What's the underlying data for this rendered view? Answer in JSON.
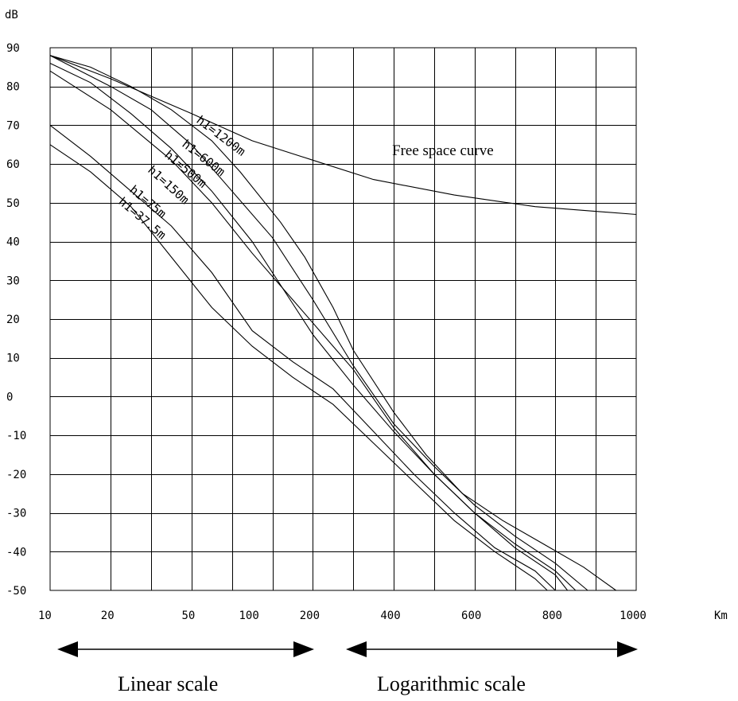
{
  "chart_data": {
    "type": "line",
    "ylabel": "dB",
    "x_unit": "Km",
    "ylim": [
      -50,
      90
    ],
    "y_ticks": [
      "90",
      "80",
      "70",
      "60",
      "50",
      "40",
      "30",
      "20",
      "10",
      "0",
      "-10",
      "-20",
      "-30",
      "-40",
      "-50"
    ],
    "x_tick_labels": [
      {
        "label": "10",
        "col": 0
      },
      {
        "label": "20",
        "col": 1.5
      },
      {
        "label": "50",
        "col": 3.5
      },
      {
        "label": "100",
        "col": 5
      },
      {
        "label": "200",
        "col": 6.5
      },
      {
        "label": "400",
        "col": 8.5
      },
      {
        "label": "600",
        "col": 10.5
      },
      {
        "label": "800",
        "col": 12.5
      },
      {
        "label": "1000",
        "col": 14.5
      }
    ],
    "grid": true,
    "series": [
      {
        "name": "Free space curve",
        "points": [
          [
            0,
            88
          ],
          [
            1.5,
            82
          ],
          [
            3.5,
            73
          ],
          [
            5,
            66
          ],
          [
            6.5,
            61
          ],
          [
            8,
            56
          ],
          [
            10,
            52
          ],
          [
            12,
            49
          ],
          [
            14.5,
            47
          ]
        ]
      },
      {
        "name": "h1=1200m",
        "points": [
          [
            0,
            88
          ],
          [
            1,
            85
          ],
          [
            2,
            80
          ],
          [
            3,
            74
          ],
          [
            4,
            66
          ],
          [
            4.7,
            58
          ],
          [
            5.7,
            45
          ],
          [
            6.3,
            36
          ],
          [
            7,
            23
          ],
          [
            7.5,
            12
          ],
          [
            8.5,
            -4
          ],
          [
            9.3,
            -15
          ],
          [
            10.2,
            -25
          ],
          [
            11.2,
            -32
          ],
          [
            12.2,
            -38
          ],
          [
            13.2,
            -44
          ],
          [
            14,
            -50
          ]
        ]
      },
      {
        "name": "h1=600m",
        "points": [
          [
            0,
            88
          ],
          [
            1.5,
            80
          ],
          [
            2.5,
            74
          ],
          [
            3.5,
            65
          ],
          [
            4.5,
            53
          ],
          [
            5.5,
            41
          ],
          [
            6.5,
            25
          ],
          [
            7.5,
            8
          ],
          [
            8.5,
            -7
          ],
          [
            9.5,
            -18
          ],
          [
            10.5,
            -28
          ],
          [
            11.5,
            -36
          ],
          [
            12.5,
            -43
          ],
          [
            13.3,
            -50
          ]
        ]
      },
      {
        "name": "h1=500m",
        "points": [
          [
            0,
            86
          ],
          [
            1,
            81
          ],
          [
            2,
            73
          ],
          [
            3,
            64
          ],
          [
            4,
            53
          ],
          [
            5,
            40
          ],
          [
            6,
            24
          ],
          [
            6.5,
            16
          ],
          [
            7.5,
            3
          ],
          [
            8.5,
            -9
          ],
          [
            9.5,
            -20
          ],
          [
            10.5,
            -30
          ],
          [
            11.5,
            -38
          ],
          [
            12.5,
            -45
          ],
          [
            13,
            -50
          ]
        ]
      },
      {
        "name": "h1=150m",
        "points": [
          [
            0,
            84
          ],
          [
            1.5,
            74
          ],
          [
            3,
            61
          ],
          [
            4,
            50
          ],
          [
            5,
            37
          ],
          [
            6,
            25
          ],
          [
            7,
            13
          ],
          [
            7.5,
            7
          ],
          [
            8.5,
            -8
          ],
          [
            9.5,
            -20
          ],
          [
            10.5,
            -30
          ],
          [
            11.5,
            -39
          ],
          [
            12.5,
            -46
          ],
          [
            12.8,
            -50
          ]
        ]
      },
      {
        "name": "h1=75m",
        "points": [
          [
            0,
            70
          ],
          [
            1,
            62
          ],
          [
            2,
            53
          ],
          [
            3,
            44
          ],
          [
            4,
            32
          ],
          [
            5,
            17
          ],
          [
            6,
            9
          ],
          [
            7,
            2
          ],
          [
            8,
            -9
          ],
          [
            9,
            -20
          ],
          [
            10,
            -30
          ],
          [
            11,
            -39
          ],
          [
            12,
            -45
          ],
          [
            12.5,
            -50
          ]
        ]
      },
      {
        "name": "h1=37.5m",
        "points": [
          [
            0,
            65
          ],
          [
            1,
            58
          ],
          [
            2,
            49
          ],
          [
            3,
            36
          ],
          [
            4,
            23
          ],
          [
            5,
            13
          ],
          [
            6,
            5
          ],
          [
            7,
            -2
          ],
          [
            8,
            -12
          ],
          [
            9,
            -22
          ],
          [
            10,
            -32
          ],
          [
            11,
            -40
          ],
          [
            12,
            -47
          ],
          [
            12.3,
            -50
          ]
        ]
      }
    ]
  },
  "annotations": {
    "free_space": "Free space curve",
    "linear_scale": "Linear scale",
    "log_scale": "Logarithmic scale"
  }
}
